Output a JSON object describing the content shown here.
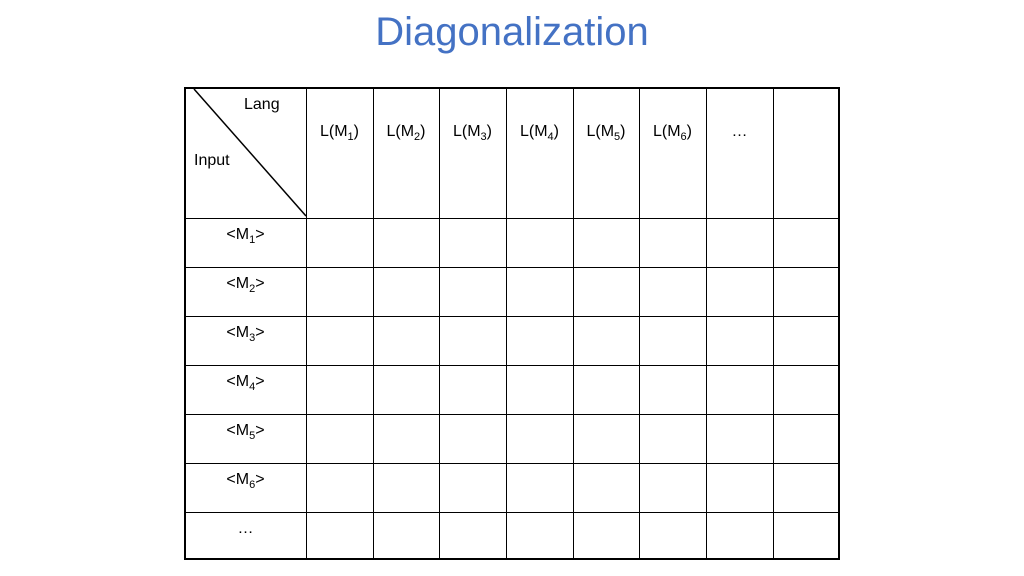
{
  "title": "Diagonalization",
  "corner": {
    "top_label": "Lang",
    "bottom_label": "Input"
  },
  "column_headers": [
    {
      "prefix": "L(M",
      "sub": "1",
      "suffix": ")"
    },
    {
      "prefix": "L(M",
      "sub": "2",
      "suffix": ")"
    },
    {
      "prefix": "L(M",
      "sub": "3",
      "suffix": ")"
    },
    {
      "prefix": "L(M",
      "sub": "4",
      "suffix": ")"
    },
    {
      "prefix": "L(M",
      "sub": "5",
      "suffix": ")"
    },
    {
      "prefix": "L(M",
      "sub": "6",
      "suffix": ")"
    },
    {
      "prefix": "…",
      "sub": "",
      "suffix": ""
    },
    {
      "prefix": "",
      "sub": "",
      "suffix": ""
    }
  ],
  "row_headers": [
    {
      "prefix": "<M",
      "sub": "1",
      "suffix": ">"
    },
    {
      "prefix": "<M",
      "sub": "2",
      "suffix": ">"
    },
    {
      "prefix": "<M",
      "sub": "3",
      "suffix": ">"
    },
    {
      "prefix": "<M",
      "sub": "4",
      "suffix": ">"
    },
    {
      "prefix": "<M",
      "sub": "5",
      "suffix": ">"
    },
    {
      "prefix": "<M",
      "sub": "6",
      "suffix": ">"
    },
    {
      "prefix": "…",
      "sub": "",
      "suffix": ""
    }
  ]
}
